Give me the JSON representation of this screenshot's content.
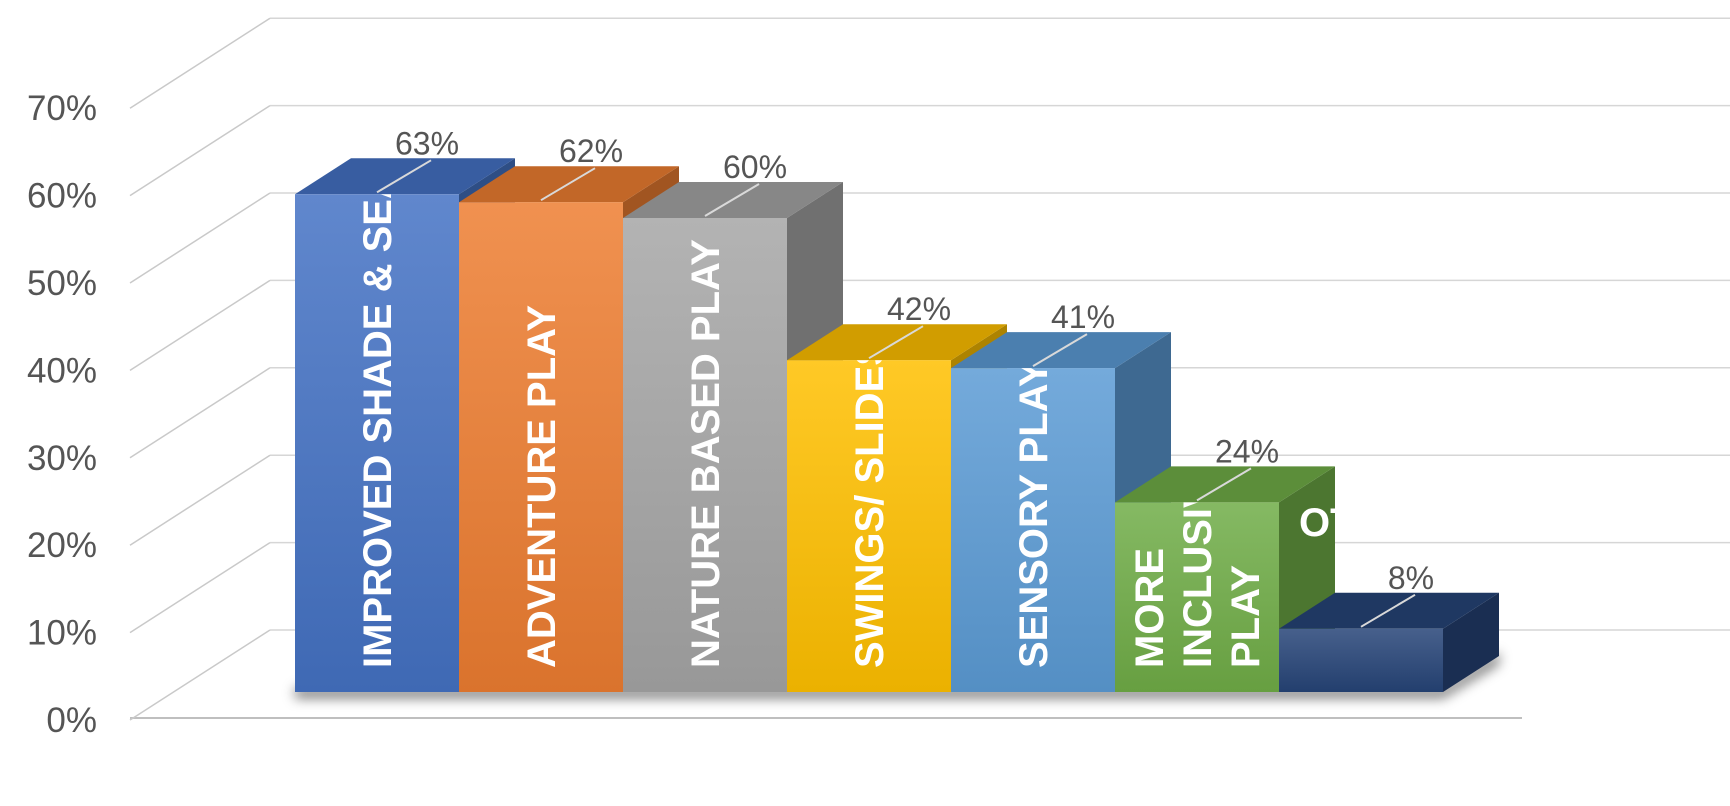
{
  "chart_data": {
    "type": "bar",
    "title": "",
    "xlabel": "",
    "ylabel": "",
    "ylim": [
      0,
      70
    ],
    "yticks": [
      {
        "value": 0,
        "label": "0%"
      },
      {
        "value": 10,
        "label": "10%"
      },
      {
        "value": 20,
        "label": "20%"
      },
      {
        "value": 30,
        "label": "30%"
      },
      {
        "value": 40,
        "label": "40%"
      },
      {
        "value": 50,
        "label": "50%"
      },
      {
        "value": 60,
        "label": "60%"
      },
      {
        "value": 70,
        "label": "70%"
      }
    ],
    "grid": true,
    "legend": "none",
    "categories": [
      {
        "label_lines": [
          "IMPROVED SHADE & SEATI"
        ],
        "value": 63,
        "value_label": "63%",
        "color": "#4472c4"
      },
      {
        "label_lines": [
          "ADVENTURE PLAY"
        ],
        "value": 62,
        "value_label": "62%",
        "color": "#ed7d31"
      },
      {
        "label_lines": [
          "NATURE BASED PLAY"
        ],
        "value": 60,
        "value_label": "60%",
        "color": "#a5a5a5"
      },
      {
        "label_lines": [
          "SWINGS/ SLIDES"
        ],
        "value": 42,
        "value_label": "42%",
        "color": "#ffc000"
      },
      {
        "label_lines": [
          "SENSORY PLAY"
        ],
        "value": 41,
        "value_label": "41%",
        "color": "#5b9bd5"
      },
      {
        "label_lines": [
          "MORE",
          "INCLUSIVE",
          "PLAY"
        ],
        "value": 24,
        "value_label": "24%",
        "color": "#70ad47"
      },
      {
        "label_lines": [
          "OT"
        ],
        "value": 8,
        "value_label": "8%",
        "color": "#264478"
      }
    ]
  }
}
